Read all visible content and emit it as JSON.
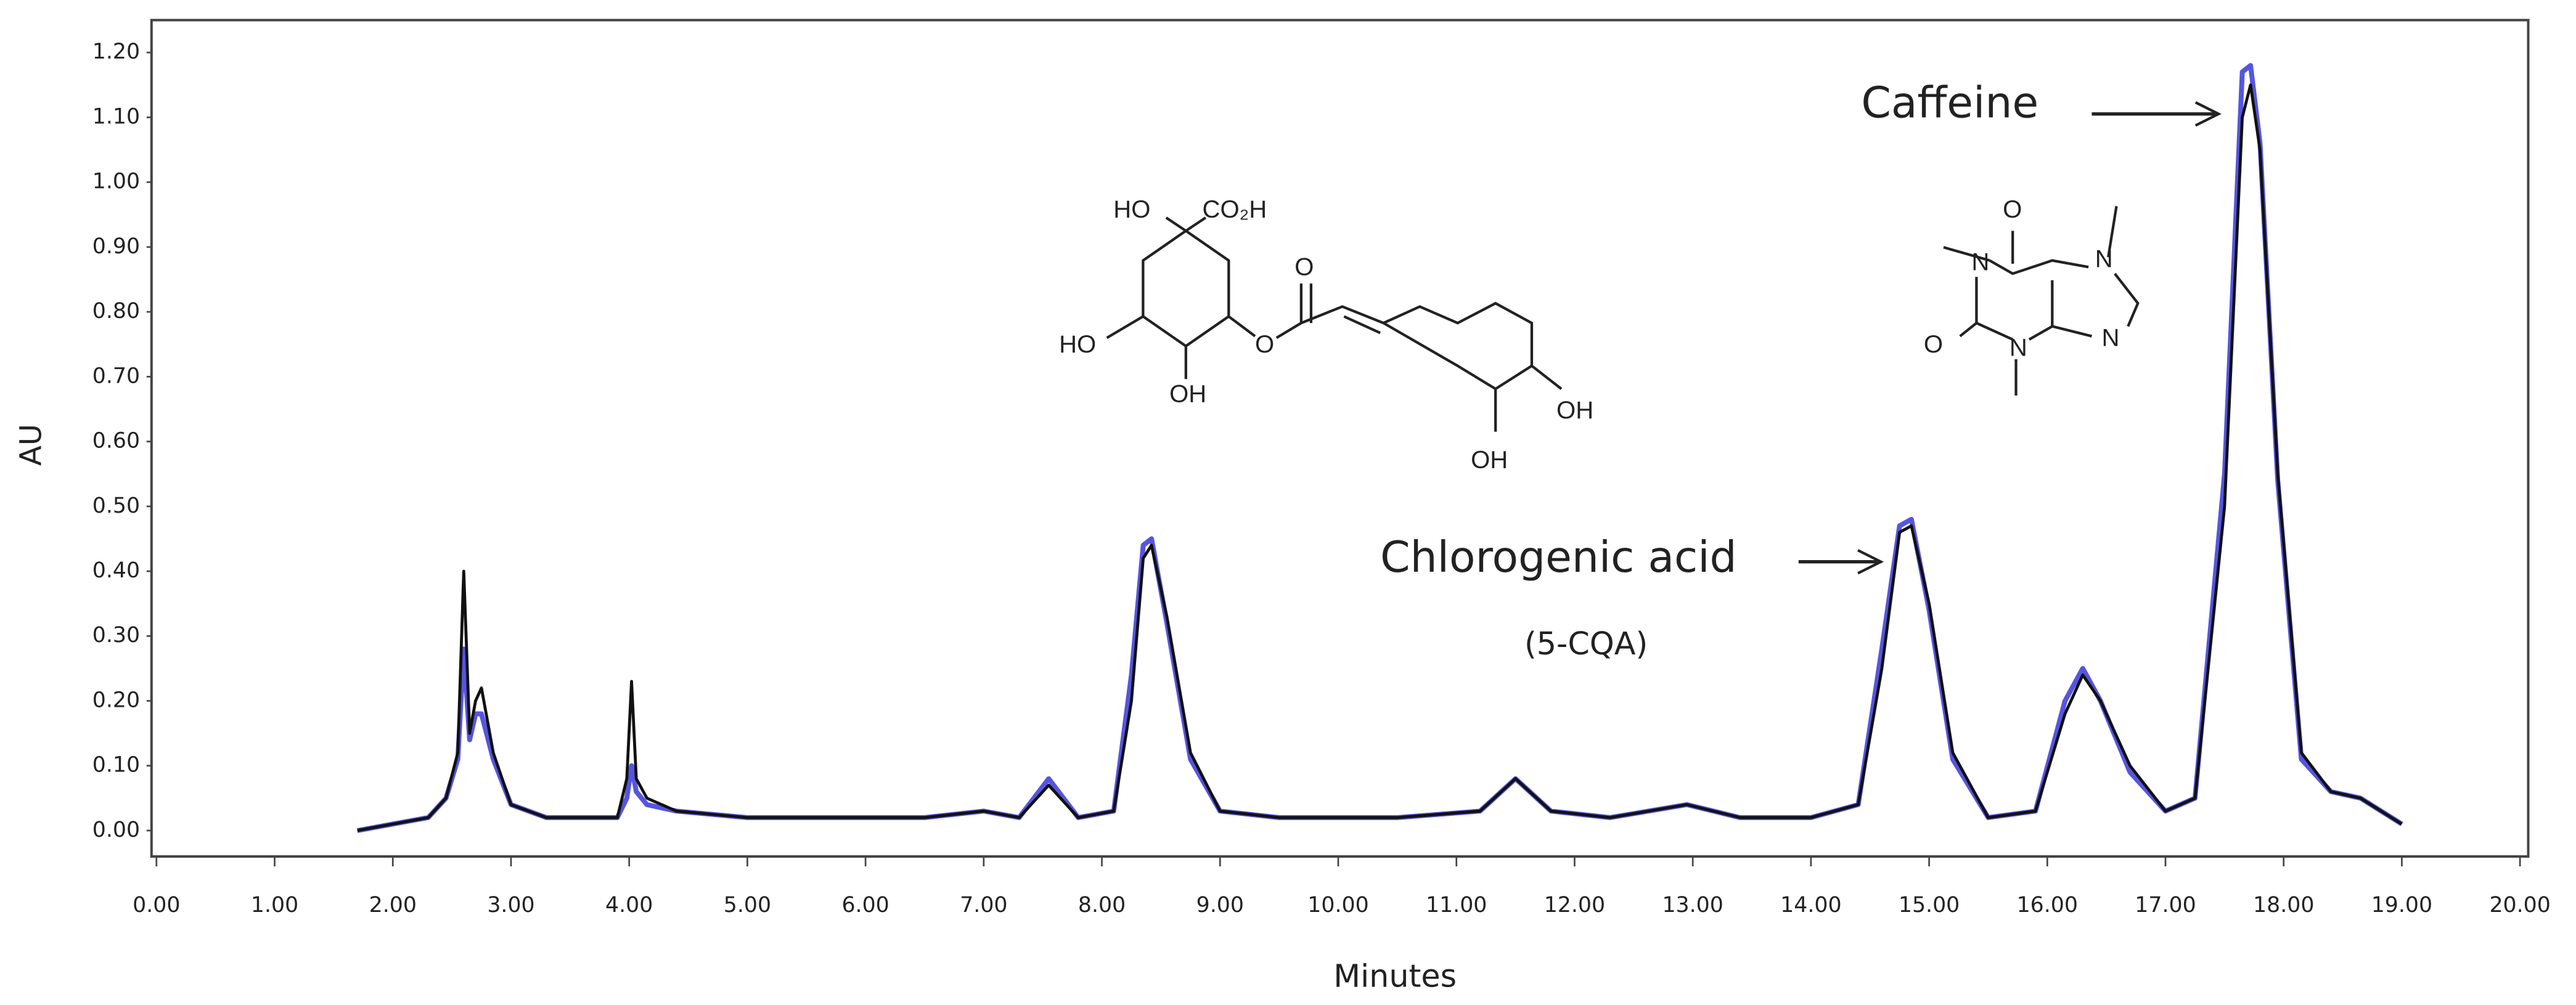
{
  "chart_data": {
    "type": "line",
    "ylabel": "AU",
    "xlabel": "Minutes",
    "xlim": [
      0,
      20
    ],
    "ylim": [
      -0.04,
      1.25
    ],
    "xticks": [
      {
        "value": 0,
        "label": "0.00"
      },
      {
        "value": 1,
        "label": "1.00"
      },
      {
        "value": 2,
        "label": "2.00"
      },
      {
        "value": 3,
        "label": "3.00"
      },
      {
        "value": 4,
        "label": "4.00"
      },
      {
        "value": 5,
        "label": "5.00"
      },
      {
        "value": 6,
        "label": "6.00"
      },
      {
        "value": 7,
        "label": "7.00"
      },
      {
        "value": 8,
        "label": "8.00"
      },
      {
        "value": 9,
        "label": "9.00"
      },
      {
        "value": 10,
        "label": "10.00"
      },
      {
        "value": 11,
        "label": "11.00"
      },
      {
        "value": 12,
        "label": "12.00"
      },
      {
        "value": 13,
        "label": "13.00"
      },
      {
        "value": 14,
        "label": "14.00"
      },
      {
        "value": 15,
        "label": "15.00"
      },
      {
        "value": 16,
        "label": "16.00"
      },
      {
        "value": 17,
        "label": "17.00"
      },
      {
        "value": 18,
        "label": "18.00"
      },
      {
        "value": 19,
        "label": "19.00"
      },
      {
        "value": 20,
        "label": "20.00"
      }
    ],
    "yticks": [
      {
        "value": 0,
        "label": "0.00"
      },
      {
        "value": 0.1,
        "label": "0.10"
      },
      {
        "value": 0.2,
        "label": "0.20"
      },
      {
        "value": 0.3,
        "label": "0.30"
      },
      {
        "value": 0.4,
        "label": "0.40"
      },
      {
        "value": 0.5,
        "label": "0.50"
      },
      {
        "value": 0.6,
        "label": "0.60"
      },
      {
        "value": 0.7,
        "label": "0.70"
      },
      {
        "value": 0.8,
        "label": "0.80"
      },
      {
        "value": 0.9,
        "label": "0.90"
      },
      {
        "value": 1,
        "label": "1.00"
      },
      {
        "value": 1.1,
        "label": "1.10"
      },
      {
        "value": 1.2,
        "label": "1.20"
      }
    ],
    "x": [
      1.7,
      2.0,
      2.3,
      2.45,
      2.55,
      2.6,
      2.65,
      2.7,
      2.75,
      2.85,
      3.0,
      3.3,
      3.6,
      3.9,
      3.98,
      4.02,
      4.06,
      4.15,
      4.4,
      5.0,
      5.5,
      6.0,
      6.5,
      7.0,
      7.3,
      7.55,
      7.8,
      8.1,
      8.25,
      8.35,
      8.42,
      8.55,
      8.75,
      9.0,
      9.5,
      10.5,
      11.2,
      11.5,
      11.8,
      12.3,
      12.95,
      13.4,
      14.0,
      14.4,
      14.6,
      14.75,
      14.85,
      15.0,
      15.2,
      15.5,
      15.9,
      16.15,
      16.3,
      16.45,
      16.7,
      17.0,
      17.25,
      17.5,
      17.65,
      17.72,
      17.8,
      17.95,
      18.15,
      18.4,
      18.65,
      19.0
    ],
    "series": [
      {
        "color": "#5555e0",
        "values": [
          0.0,
          0.01,
          0.02,
          0.05,
          0.11,
          0.28,
          0.14,
          0.18,
          0.18,
          0.11,
          0.04,
          0.02,
          0.02,
          0.02,
          0.05,
          0.1,
          0.06,
          0.04,
          0.03,
          0.02,
          0.02,
          0.02,
          0.02,
          0.03,
          0.02,
          0.08,
          0.02,
          0.03,
          0.24,
          0.44,
          0.45,
          0.32,
          0.11,
          0.03,
          0.02,
          0.02,
          0.03,
          0.08,
          0.03,
          0.02,
          0.04,
          0.02,
          0.02,
          0.04,
          0.28,
          0.47,
          0.48,
          0.34,
          0.11,
          0.02,
          0.03,
          0.2,
          0.25,
          0.2,
          0.09,
          0.03,
          0.05,
          0.55,
          1.17,
          1.18,
          1.06,
          0.54,
          0.11,
          0.06,
          0.05,
          0.01
        ]
      },
      {
        "color": "#111111",
        "values": [
          0.0,
          0.01,
          0.02,
          0.05,
          0.12,
          0.4,
          0.15,
          0.2,
          0.22,
          0.12,
          0.04,
          0.02,
          0.02,
          0.02,
          0.08,
          0.23,
          0.08,
          0.05,
          0.03,
          0.02,
          0.02,
          0.02,
          0.02,
          0.03,
          0.02,
          0.07,
          0.02,
          0.03,
          0.2,
          0.42,
          0.44,
          0.33,
          0.12,
          0.03,
          0.02,
          0.02,
          0.03,
          0.08,
          0.03,
          0.02,
          0.04,
          0.02,
          0.02,
          0.04,
          0.25,
          0.46,
          0.47,
          0.35,
          0.12,
          0.02,
          0.03,
          0.18,
          0.24,
          0.2,
          0.1,
          0.03,
          0.05,
          0.5,
          1.1,
          1.15,
          1.05,
          0.55,
          0.12,
          0.06,
          0.05,
          0.01
        ]
      }
    ],
    "annotations": [
      "Caffeine",
      "Chlorogenic acid",
      "(5-CQA)"
    ],
    "structure_labels": [
      "HO",
      "CO₂H",
      "HO",
      "OH",
      "O",
      "O",
      "OH",
      "OH",
      "O",
      "N",
      "N",
      "O",
      "N",
      "N"
    ]
  }
}
